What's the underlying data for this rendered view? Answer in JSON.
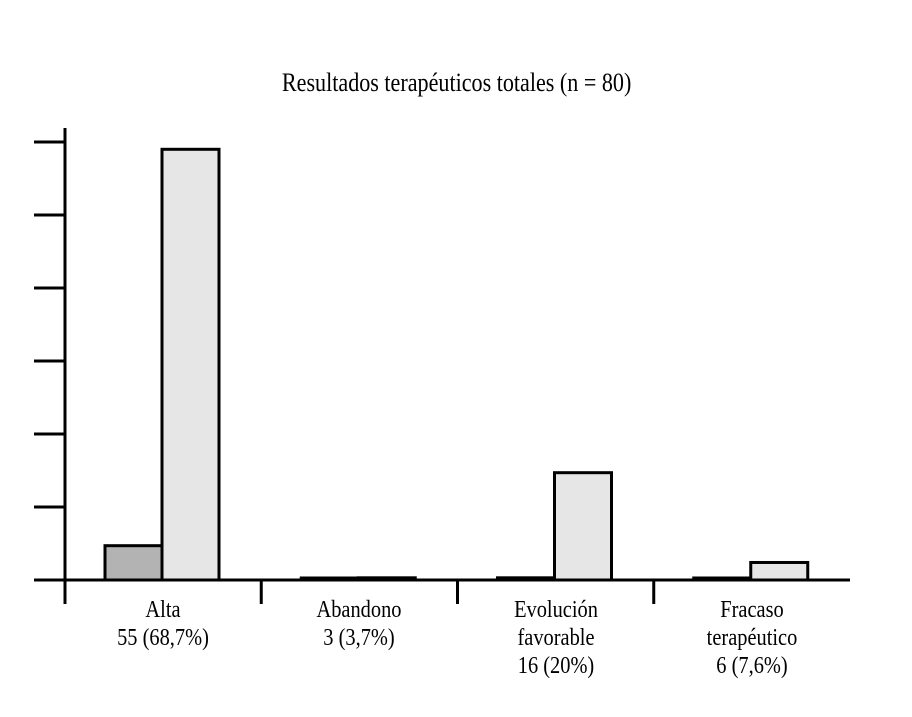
{
  "chart_data": {
    "type": "bar",
    "title": "Resultados terapéuticos totales (n = 80)",
    "xlabel": "",
    "ylabel": "",
    "categories": [
      {
        "lines": [
          "Alta",
          "55 (68,7%)"
        ]
      },
      {
        "lines": [
          "Abandono",
          "3 (3,7%)"
        ]
      },
      {
        "lines": [
          "Evolución",
          "favorable",
          "16 (20%)"
        ]
      },
      {
        "lines": [
          "Fracaso",
          "terapéutico",
          "6 (7,6%)"
        ]
      }
    ],
    "series": [
      {
        "values": [
          4.7,
          0.2,
          0.3,
          0.1
        ],
        "color": "#b3b3b3"
      },
      {
        "values": [
          59,
          0.3,
          14.7,
          2.4
        ],
        "color": "#e6e6e6"
      }
    ],
    "ylim": [
      0,
      60
    ],
    "y_ticks": [
      0,
      10,
      20,
      30,
      40,
      50,
      60
    ],
    "grid": false
  }
}
